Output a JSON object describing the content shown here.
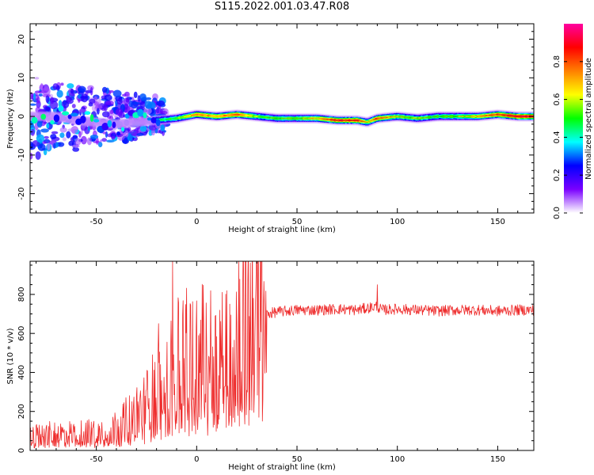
{
  "title": "S115.2022.001.03.47.R08",
  "colors": {
    "snr_line": "#ee2b2b",
    "axis": "#000000"
  },
  "chart_data": [
    {
      "type": "heatmap",
      "title": "S115.2022.001.03.47.R08",
      "xlabel": "Height of straight line (km)",
      "ylabel": "Frequency (Hz)",
      "xlim": [
        -83,
        168
      ],
      "ylim": [
        -25,
        24
      ],
      "x_ticks": [
        -50,
        0,
        50,
        100,
        150
      ],
      "y_ticks": [
        -20,
        -10,
        0,
        10,
        20
      ],
      "x_tick_labels": [
        "-50",
        "0",
        "50",
        "100",
        "150"
      ],
      "y_tick_labels": [
        "-20",
        "-10",
        "0",
        "10",
        "20"
      ],
      "grid": false,
      "colorbar": {
        "label": "Normalized spectral amplitude",
        "range": [
          0,
          1
        ],
        "ticks": [
          0.0,
          0.2,
          0.4,
          0.6,
          0.8
        ],
        "tick_labels": [
          "0.0",
          "0.2",
          "0.4",
          "0.6",
          "0.8"
        ],
        "colormap": [
          "#ffffff",
          "#7a00ff",
          "#0000ff",
          "#00ffff",
          "#00ff00",
          "#ffff00",
          "#ff8000",
          "#ff0000",
          "#ff00a0"
        ]
      },
      "description_of_signal": "Energy concentrated near 0 Hz; scattered broadband energy from -83 to -15 km; narrow band near 0 Hz above -15 km reaching high amplitude",
      "ridge": {
        "x": [
          -83,
          -70,
          -60,
          -50,
          -40,
          -30,
          -20,
          -10,
          0,
          10,
          20,
          30,
          40,
          50,
          60,
          70,
          80,
          85,
          90,
          100,
          110,
          120,
          130,
          140,
          150,
          160,
          168
        ],
        "y": [
          0,
          0,
          -1,
          -1.5,
          -2,
          -1.5,
          -1,
          -0.5,
          0.5,
          0,
          0.5,
          0,
          -0.5,
          -0.5,
          -0.5,
          -1,
          -1,
          -1.5,
          -0.5,
          0,
          -0.5,
          0,
          0,
          0,
          0.5,
          0,
          0
        ],
        "amplitude": [
          0.3,
          0.3,
          0.35,
          0.3,
          0.35,
          0.4,
          0.45,
          0.5,
          0.75,
          0.7,
          0.8,
          0.55,
          0.5,
          0.55,
          0.65,
          0.85,
          0.85,
          0.6,
          0.8,
          0.6,
          0.55,
          0.5,
          0.55,
          0.65,
          0.8,
          0.9,
          0.9
        ]
      }
    },
    {
      "type": "line",
      "xlabel": "Height of straight line (km)",
      "ylabel": "SNR (10 * v/v)",
      "xlim": [
        -83,
        168
      ],
      "ylim": [
        0,
        970
      ],
      "x_ticks": [
        -50,
        0,
        50,
        100,
        150
      ],
      "y_ticks": [
        0,
        200,
        400,
        600,
        800
      ],
      "x_tick_labels": [
        "-50",
        "0",
        "50",
        "100",
        "150"
      ],
      "y_tick_labels": [
        "0",
        "200",
        "400",
        "600",
        "800"
      ],
      "grid": false,
      "series": [
        {
          "x": [
            -83,
            -75,
            -65,
            -55,
            -45,
            -40,
            -35,
            -30,
            -25,
            -20,
            -15,
            -12,
            -10,
            -5,
            0,
            5,
            10,
            15,
            20,
            25,
            30,
            35,
            40,
            50,
            60,
            70,
            80,
            90,
            92,
            100,
            110,
            120,
            130,
            140,
            150,
            160,
            168
          ],
          "y": [
            70,
            80,
            85,
            90,
            100,
            120,
            150,
            180,
            230,
            300,
            350,
            380,
            420,
            450,
            470,
            490,
            430,
            560,
            610,
            650,
            680,
            700,
            710,
            720,
            720,
            725,
            720,
            740,
            720,
            725,
            720,
            715,
            720,
            720,
            715,
            720,
            720
          ],
          "spikes": [
            {
              "x": -12,
              "y": 970
            },
            {
              "x": -19,
              "y": 650
            },
            {
              "x": 90,
              "y": 850
            },
            {
              "x": 13,
              "y": 240
            }
          ]
        }
      ]
    }
  ]
}
